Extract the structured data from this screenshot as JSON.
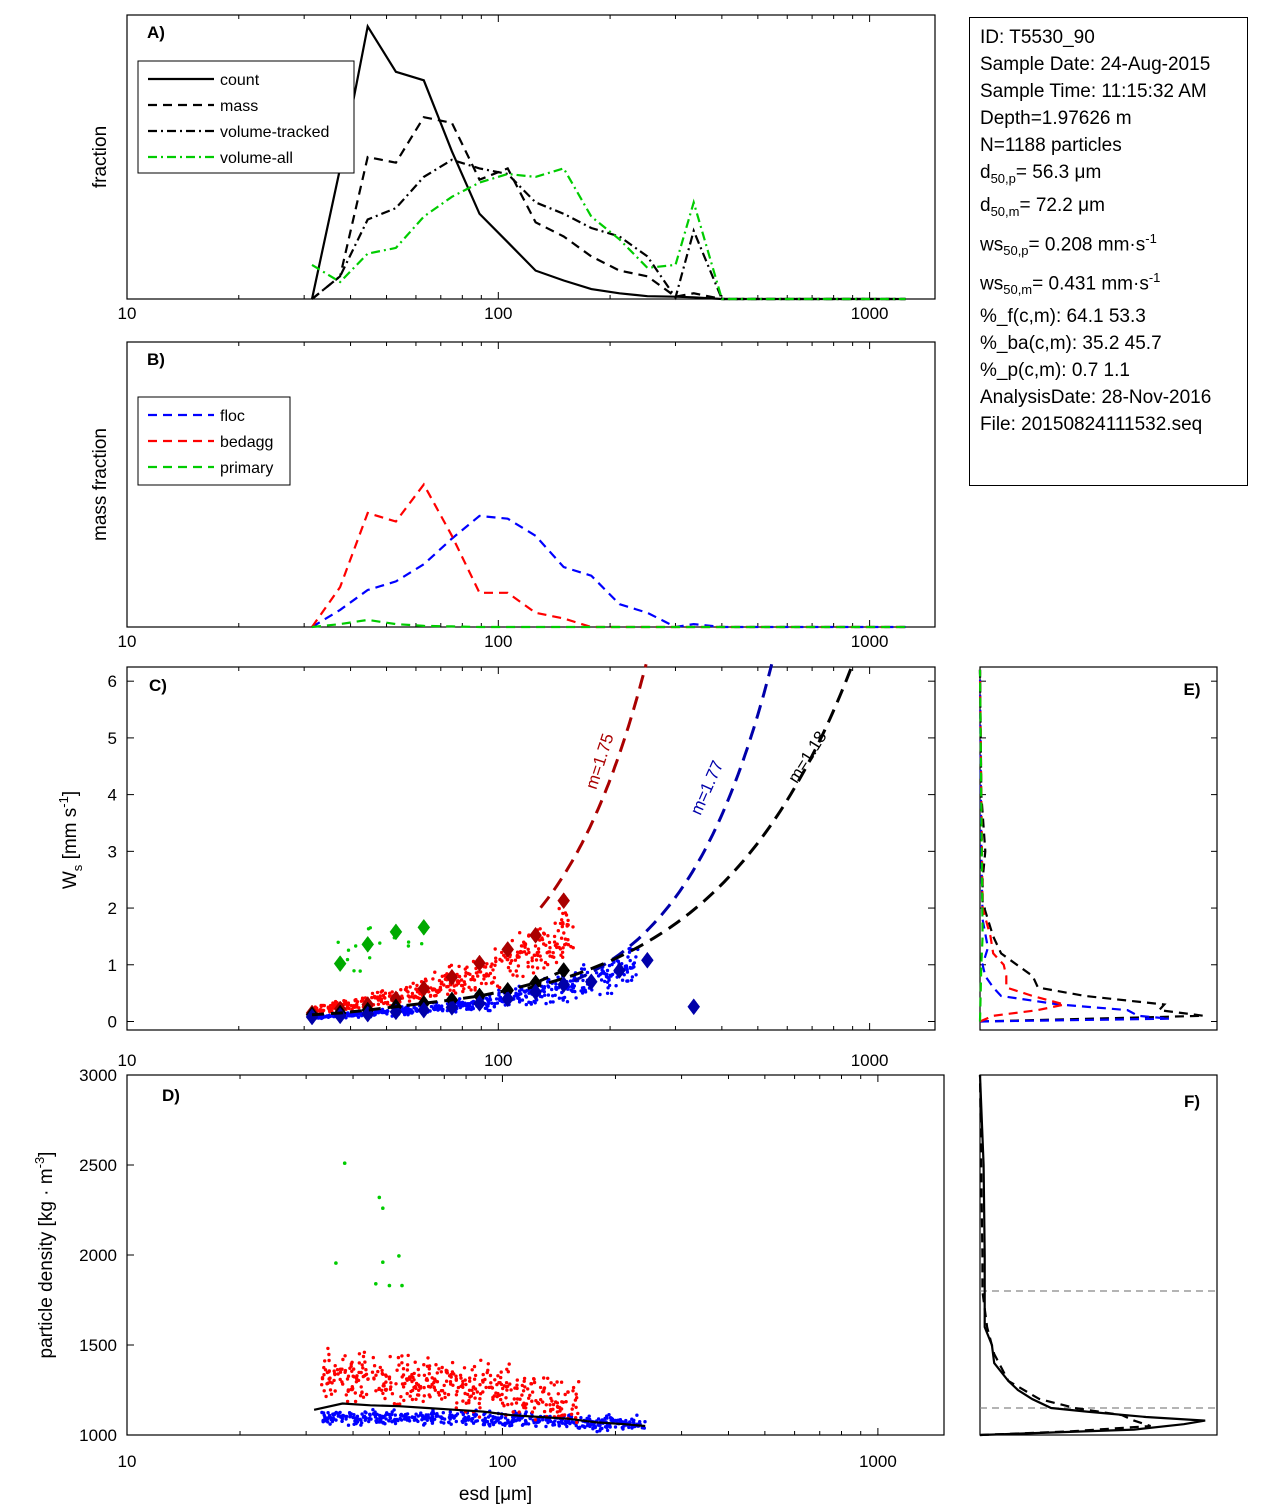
{
  "info": {
    "id": "ID: T5530_90",
    "sample_date": "Sample Date: 24-Aug-2015",
    "sample_time": "Sample Time: 11:15:32 AM",
    "depth": "Depth=1.97626 m",
    "n": "N=1188 particles",
    "d50p_sym": "d",
    "d50p_sub": "50,p",
    "d50p_val": "=  56.3 μm",
    "d50m_sym": "d",
    "d50m_sub": "50,m",
    "d50m_val": "=  72.2 μm",
    "ws50p_sym": "ws",
    "ws50p_sub": "50,p",
    "ws50p_val": "= 0.208 mm·s",
    "ws50p_sup": "-1",
    "ws50m_sym": "ws",
    "ws50m_sub": "50,m",
    "ws50m_val": "= 0.431 mm·s",
    "ws50m_sup": "-1",
    "pf": "%_f(c,m): 64.1 53.3",
    "pba": "%_ba(c,m): 35.2 45.7",
    "pp": "%_p(c,m): 0.7 1.1",
    "analysis_date": "AnalysisDate: 28-Nov-2016",
    "file": "File: 20150824111532.seq"
  },
  "chart_data": [
    {
      "panel": "A)",
      "type": "line",
      "ylabel": "fraction",
      "xscale": "log",
      "xlim": [
        10,
        1500
      ],
      "ylim": [
        0,
        1
      ],
      "x": [
        31.5,
        37.5,
        44.5,
        53,
        63,
        75,
        89,
        106,
        126,
        150,
        178,
        212,
        252,
        300,
        336,
        400,
        476,
        566,
        673,
        800,
        952,
        1131,
        1250
      ],
      "legend_pos": "top-left",
      "series": [
        {
          "name": "count",
          "color": "#000000",
          "dash": "solid",
          "values": [
            0.0,
            0.46,
            0.96,
            0.8,
            0.77,
            0.52,
            0.3,
            0.2,
            0.1,
            0.065,
            0.035,
            0.02,
            0.01,
            0.008,
            0.006,
            0.0,
            0.0,
            0.0,
            0.0,
            0.0,
            0.0,
            0.0,
            0.0
          ]
        },
        {
          "name": "mass",
          "color": "#000000",
          "dash": "dash",
          "values": [
            0.0,
            0.08,
            0.5,
            0.48,
            0.64,
            0.62,
            0.42,
            0.46,
            0.27,
            0.22,
            0.15,
            0.1,
            0.08,
            0.008,
            0.02,
            0.0,
            0.0,
            0.0,
            0.0,
            0.0,
            0.0,
            0.0,
            0.0
          ]
        },
        {
          "name": "volume-tracked",
          "color": "#000000",
          "dash": "dashdot",
          "values": [
            0.0,
            0.08,
            0.28,
            0.32,
            0.43,
            0.49,
            0.46,
            0.44,
            0.34,
            0.3,
            0.25,
            0.22,
            0.15,
            0.005,
            0.24,
            0.0,
            0.0,
            0.0,
            0.0,
            0.0,
            0.0,
            0.0,
            0.0
          ]
        },
        {
          "name": "volume-all",
          "color": "#00cc00",
          "dash": "dashdot",
          "values": [
            0.12,
            0.06,
            0.16,
            0.18,
            0.29,
            0.36,
            0.41,
            0.44,
            0.43,
            0.46,
            0.29,
            0.21,
            0.11,
            0.12,
            0.34,
            0.0,
            0.0,
            0.0,
            0.0,
            0.0,
            0.0,
            0.0,
            0.0
          ]
        }
      ],
      "xticks": [
        "10",
        "100",
        "1000"
      ]
    },
    {
      "panel": "B)",
      "type": "line",
      "ylabel": "mass fraction",
      "xscale": "log",
      "xlim": [
        10,
        1500
      ],
      "ylim": [
        0,
        1
      ],
      "x": [
        31.5,
        37.5,
        44.5,
        53,
        63,
        75,
        89,
        106,
        126,
        150,
        178,
        212,
        252,
        300,
        336,
        400,
        476,
        566,
        673,
        800,
        952,
        1131,
        1250
      ],
      "legend_pos": "top-left",
      "series": [
        {
          "name": "floc",
          "color": "#0000ff",
          "dash": "dash",
          "values": [
            0.0,
            0.06,
            0.13,
            0.16,
            0.22,
            0.31,
            0.39,
            0.38,
            0.32,
            0.21,
            0.18,
            0.08,
            0.05,
            0.0,
            0.01,
            0.0,
            0.0,
            0.0,
            0.0,
            0.0,
            0.0,
            0.0,
            0.0
          ]
        },
        {
          "name": "bedagg",
          "color": "#ff0000",
          "dash": "dash",
          "values": [
            0.0,
            0.14,
            0.4,
            0.37,
            0.5,
            0.32,
            0.12,
            0.12,
            0.05,
            0.03,
            0.0,
            0.0,
            0.0,
            0.0,
            0.0,
            0.0,
            0.0,
            0.0,
            0.0,
            0.0,
            0.0,
            0.0,
            0.0
          ]
        },
        {
          "name": "primary",
          "color": "#00cc00",
          "dash": "dash",
          "values": [
            0.0,
            0.01,
            0.025,
            0.01,
            0.004,
            0.002,
            0.0,
            0.0,
            0.0,
            0.0,
            0.0,
            0.0,
            0.0,
            0.0,
            0.0,
            0.0,
            0.0,
            0.0,
            0.0,
            0.0,
            0.0,
            0.0,
            0.0
          ]
        }
      ],
      "xticks": [
        "10",
        "100",
        "1000"
      ]
    },
    {
      "panel": "C)",
      "type": "scatter",
      "ylabel_main": "W",
      "ylabel_sub": "s",
      "ylabel_unit": " [mm s",
      "ylabel_sup": "-1",
      "ylabel_close": "]",
      "xscale": "log",
      "xlim": [
        10,
        1500
      ],
      "ylim": [
        -0.15,
        6.25
      ],
      "yticks": [
        "0",
        "1",
        "2",
        "3",
        "4",
        "5",
        "6"
      ],
      "xticks": [
        "10",
        "100",
        "1000"
      ],
      "fit_curves": [
        {
          "label": "m=1.75",
          "color": "#aa0000",
          "m": 1.75,
          "x_end": 250
        },
        {
          "label": "m=1.77",
          "color": "#0000aa",
          "m": 1.77,
          "x_end": 545
        },
        {
          "label": "m=1.18",
          "color": "#000000",
          "m": 1.18,
          "x_end": 900
        }
      ],
      "median_markers": {
        "green": {
          "x": [
            37.5,
            44.5,
            53,
            63
          ],
          "y": [
            1.02,
            1.36,
            1.58,
            1.66
          ]
        },
        "red": {
          "x": [
            31.5,
            37.5,
            44.5,
            53,
            63,
            75,
            89,
            106,
            126,
            150
          ],
          "y": [
            0.15,
            0.22,
            0.3,
            0.4,
            0.58,
            0.78,
            1.03,
            1.27,
            1.52,
            2.13
          ]
        },
        "black": {
          "x": [
            31.5,
            37.5,
            44.5,
            53,
            63,
            75,
            89,
            106,
            126,
            150
          ],
          "y": [
            0.12,
            0.15,
            0.2,
            0.26,
            0.32,
            0.38,
            0.45,
            0.55,
            0.68,
            0.9
          ]
        },
        "blue": {
          "x": [
            31.5,
            37.5,
            44.5,
            53,
            63,
            75,
            89,
            106,
            126,
            150,
            178,
            212,
            252,
            336
          ],
          "y": [
            0.08,
            0.1,
            0.13,
            0.17,
            0.2,
            0.25,
            0.32,
            0.4,
            0.52,
            0.65,
            0.7,
            0.9,
            1.08,
            0.26
          ]
        }
      }
    },
    {
      "panel": "D)",
      "type": "scatter",
      "ylabel": "particle density [kg · m",
      "ylabel_sup": "-3",
      "ylabel_close": "]",
      "xlabel": "esd [μm]",
      "xscale": "log",
      "xlim": [
        10,
        1500
      ],
      "ylim": [
        1000,
        3000
      ],
      "yticks": [
        "1000",
        "1500",
        "2000",
        "2500",
        "3000"
      ],
      "xticks": [
        "10",
        "100",
        "1000"
      ],
      "median_line": {
        "x": [
          31.5,
          37.5,
          44.5,
          53,
          63,
          75,
          89,
          106,
          126,
          150,
          178,
          212,
          240
        ],
        "y": [
          1140,
          1175,
          1165,
          1160,
          1150,
          1140,
          1130,
          1110,
          1100,
          1090,
          1070,
          1060,
          1050
        ]
      },
      "green_points": {
        "x": [
          38,
          47,
          48,
          53,
          48,
          36,
          54,
          46,
          50
        ],
        "y": [
          2510,
          2320,
          2260,
          1995,
          1960,
          1955,
          1830,
          1840,
          1830
        ]
      }
    },
    {
      "panel": "E)",
      "type": "line",
      "orientation": "horizontal-histogram",
      "ylim": [
        -0.15,
        6.25
      ],
      "series": [
        {
          "color": "#000000",
          "dash": "dash",
          "y": [
            0.0,
            0.1,
            0.2,
            0.3,
            0.45,
            0.6,
            0.8,
            1.0,
            1.2,
            1.5,
            1.8,
            2.1,
            2.5,
            3.0,
            4.0,
            6.2
          ],
          "values": [
            0.0,
            0.85,
            0.68,
            0.7,
            0.4,
            0.22,
            0.2,
            0.14,
            0.08,
            0.05,
            0.03,
            0.01,
            0.01,
            0.02,
            0.005,
            0.0
          ]
        },
        {
          "color": "#0000ff",
          "dash": "dash",
          "y": [
            0.0,
            0.05,
            0.1,
            0.2,
            0.3,
            0.45,
            0.6,
            0.8,
            1.0,
            1.3,
            1.8,
            3.0,
            6.2
          ],
          "values": [
            0.0,
            0.72,
            0.6,
            0.56,
            0.3,
            0.08,
            0.05,
            0.02,
            0.01,
            0.03,
            0.01,
            0.005,
            0.0
          ]
        },
        {
          "color": "#ff0000",
          "dash": "dash",
          "y": [
            0.0,
            0.1,
            0.2,
            0.3,
            0.45,
            0.6,
            0.8,
            1.0,
            1.2,
            1.5,
            2.0,
            6.2
          ],
          "values": [
            0.0,
            0.05,
            0.22,
            0.32,
            0.2,
            0.1,
            0.1,
            0.09,
            0.05,
            0.04,
            0.01,
            0.0
          ]
        },
        {
          "color": "#00cc00",
          "dash": "dash",
          "y": [
            0.0,
            1.0,
            1.5,
            6.2
          ],
          "values": [
            0.0,
            0.005,
            0.01,
            0.0
          ]
        }
      ]
    },
    {
      "panel": "F)",
      "type": "line",
      "orientation": "horizontal-histogram",
      "ylim": [
        1000,
        3000
      ],
      "ref_lines": [
        1150,
        1800
      ],
      "series": [
        {
          "color": "#000000",
          "dash": "solid",
          "y": [
            1000,
            1030,
            1060,
            1080,
            1100,
            1130,
            1150,
            1200,
            1250,
            1300,
            1400,
            1500,
            1600,
            2000,
            2500,
            3000
          ],
          "values": [
            0.0,
            0.65,
            0.86,
            0.95,
            0.7,
            0.45,
            0.3,
            0.22,
            0.16,
            0.12,
            0.06,
            0.05,
            0.02,
            0.02,
            0.015,
            0.0
          ]
        },
        {
          "color": "#000000",
          "dash": "dash",
          "y": [
            1000,
            1020,
            1050,
            1080,
            1110,
            1150,
            1200,
            1300,
            1450,
            1600,
            1800,
            2000,
            2500,
            3000
          ],
          "values": [
            0.0,
            0.38,
            0.72,
            0.65,
            0.6,
            0.4,
            0.25,
            0.12,
            0.06,
            0.03,
            0.01,
            0.01,
            0.005,
            0.0
          ]
        }
      ]
    }
  ]
}
